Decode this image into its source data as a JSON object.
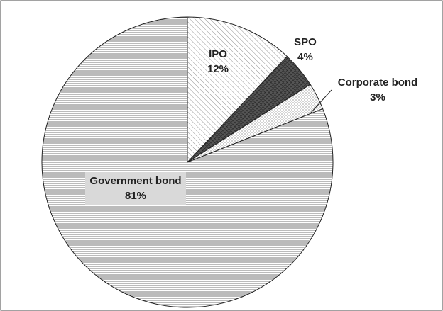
{
  "chart_data": {
    "type": "pie",
    "categories": [
      "IPO",
      "SPO",
      "Corporate bond",
      "Government bond"
    ],
    "values": [
      12,
      4,
      3,
      81
    ],
    "value_labels": [
      "12%",
      "4%",
      "3%",
      "81%"
    ]
  }
}
